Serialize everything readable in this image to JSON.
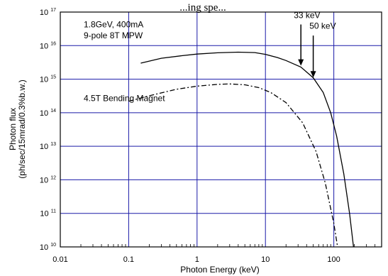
{
  "chart_data": {
    "type": "line",
    "title": "...ing spe...",
    "xlabel": "Photon Energy (keV)",
    "ylabel_lines": [
      "Photon flux",
      "(ph/sec/15mrad/0.3%b.w.)"
    ],
    "x_scale": "log",
    "y_scale": "log",
    "xlim": [
      0.01,
      500
    ],
    "ylim_exponents": [
      10,
      17
    ],
    "x_ticks": [
      {
        "value": 0.01,
        "label": "0.01"
      },
      {
        "value": 0.1,
        "label": "0.1"
      },
      {
        "value": 1,
        "label": "1"
      },
      {
        "value": 10,
        "label": "10"
      },
      {
        "value": 100,
        "label": "100"
      }
    ],
    "y_ticks": [
      {
        "exp": 10,
        "base": "10",
        "sup": "10"
      },
      {
        "exp": 11,
        "base": "10",
        "sup": "11"
      },
      {
        "exp": 12,
        "base": "10",
        "sup": "12"
      },
      {
        "exp": 13,
        "base": "10",
        "sup": "13"
      },
      {
        "exp": 14,
        "base": "10",
        "sup": "14"
      },
      {
        "exp": 15,
        "base": "10",
        "sup": "15"
      },
      {
        "exp": 16,
        "base": "10",
        "sup": "16"
      },
      {
        "exp": 17,
        "base": "10",
        "sup": "17"
      }
    ],
    "grid": true,
    "grid_color": "#1a1aa8",
    "series": [
      {
        "line_style": "solid",
        "points": [
          {
            "x": 0.15,
            "y": 3000000000000000.0
          },
          {
            "x": 0.3,
            "y": 4200000000000000.0
          },
          {
            "x": 0.6,
            "y": 5000000000000000.0
          },
          {
            "x": 1,
            "y": 5600000000000000.0
          },
          {
            "x": 2,
            "y": 6100000000000000.0
          },
          {
            "x": 4,
            "y": 6400000000000000.0
          },
          {
            "x": 7,
            "y": 6200000000000000.0
          },
          {
            "x": 10,
            "y": 5500000000000000.0
          },
          {
            "x": 15,
            "y": 4400000000000000.0
          },
          {
            "x": 20,
            "y": 3600000000000000.0
          },
          {
            "x": 33,
            "y": 2300000000000000.0
          },
          {
            "x": 50,
            "y": 1100000000000000.0
          },
          {
            "x": 70,
            "y": 400000000000000.0
          },
          {
            "x": 90,
            "y": 100000000000000.0
          },
          {
            "x": 110,
            "y": 20000000000000.0
          },
          {
            "x": 140,
            "y": 1500000000000.0
          },
          {
            "x": 170,
            "y": 100000000000.0
          },
          {
            "x": 200,
            "y": 6000000000.0
          },
          {
            "x": 230,
            "y": 1000000000.0
          }
        ]
      },
      {
        "line_style": "dash-dot",
        "points": [
          {
            "x": 0.1,
            "y": 220000000000000.0
          },
          {
            "x": 0.2,
            "y": 320000000000000.0
          },
          {
            "x": 0.5,
            "y": 500000000000000.0
          },
          {
            "x": 1,
            "y": 620000000000000.0
          },
          {
            "x": 2,
            "y": 700000000000000.0
          },
          {
            "x": 3,
            "y": 720000000000000.0
          },
          {
            "x": 5,
            "y": 680000000000000.0
          },
          {
            "x": 8,
            "y": 560000000000000.0
          },
          {
            "x": 12,
            "y": 400000000000000.0
          },
          {
            "x": 20,
            "y": 200000000000000.0
          },
          {
            "x": 35,
            "y": 50000000000000.0
          },
          {
            "x": 55,
            "y": 7000000000000.0
          },
          {
            "x": 75,
            "y": 800000000000.0
          },
          {
            "x": 100,
            "y": 50000000000.0
          },
          {
            "x": 120,
            "y": 5000000000.0
          }
        ]
      }
    ],
    "annotations": [
      {
        "id": "label-mpw-1",
        "text": "1.8GeV, 400mA",
        "x": 0.022,
        "y_exp": 16.55
      },
      {
        "id": "label-mpw-2",
        "text": "9-pole 8T MPW",
        "x": 0.022,
        "y_exp": 16.22
      },
      {
        "id": "label-bm",
        "text": "4.5T Bending Magnet",
        "x": 0.022,
        "y_exp": 14.35
      },
      {
        "id": "label-33kev",
        "text": "33 keV",
        "x": 26,
        "y_exp": 16.82
      },
      {
        "id": "label-50kev",
        "text": "50 keV",
        "x": 44,
        "y_exp": 16.5
      }
    ],
    "arrows": [
      {
        "id": "arrow-33kev",
        "x": 33,
        "from_exp": 16.63,
        "to_exp": 15.4
      },
      {
        "id": "arrow-50kev",
        "x": 50,
        "from_exp": 16.3,
        "to_exp": 15.05
      }
    ]
  }
}
